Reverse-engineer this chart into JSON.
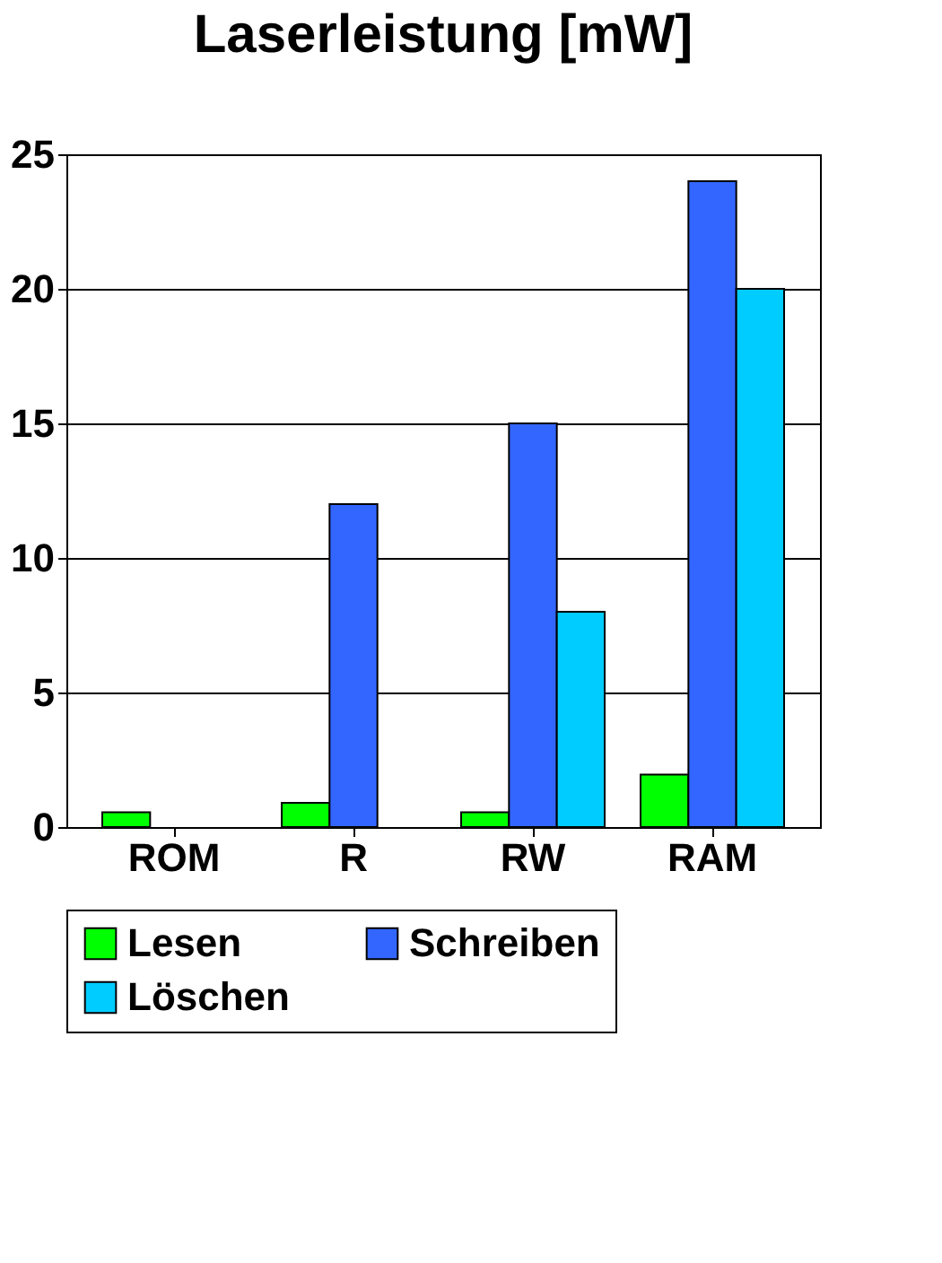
{
  "chart_data": {
    "type": "bar",
    "title": "Laserleistung [mW]",
    "categories": [
      "ROM",
      "R",
      "RW",
      "RAM"
    ],
    "series": [
      {
        "name": "Lesen",
        "color": "#00ff00",
        "values": [
          0.55,
          0.9,
          0.55,
          1.95
        ]
      },
      {
        "name": "Schreiben",
        "color": "#3366ff",
        "values": [
          null,
          12,
          15,
          24
        ]
      },
      {
        "name": "Löschen",
        "color": "#00ccff",
        "values": [
          null,
          null,
          8,
          20
        ]
      }
    ],
    "ylim": [
      0,
      25
    ],
    "yticks": [
      0,
      5,
      10,
      15,
      20,
      25
    ],
    "grid": "y",
    "legend": "bottom"
  }
}
